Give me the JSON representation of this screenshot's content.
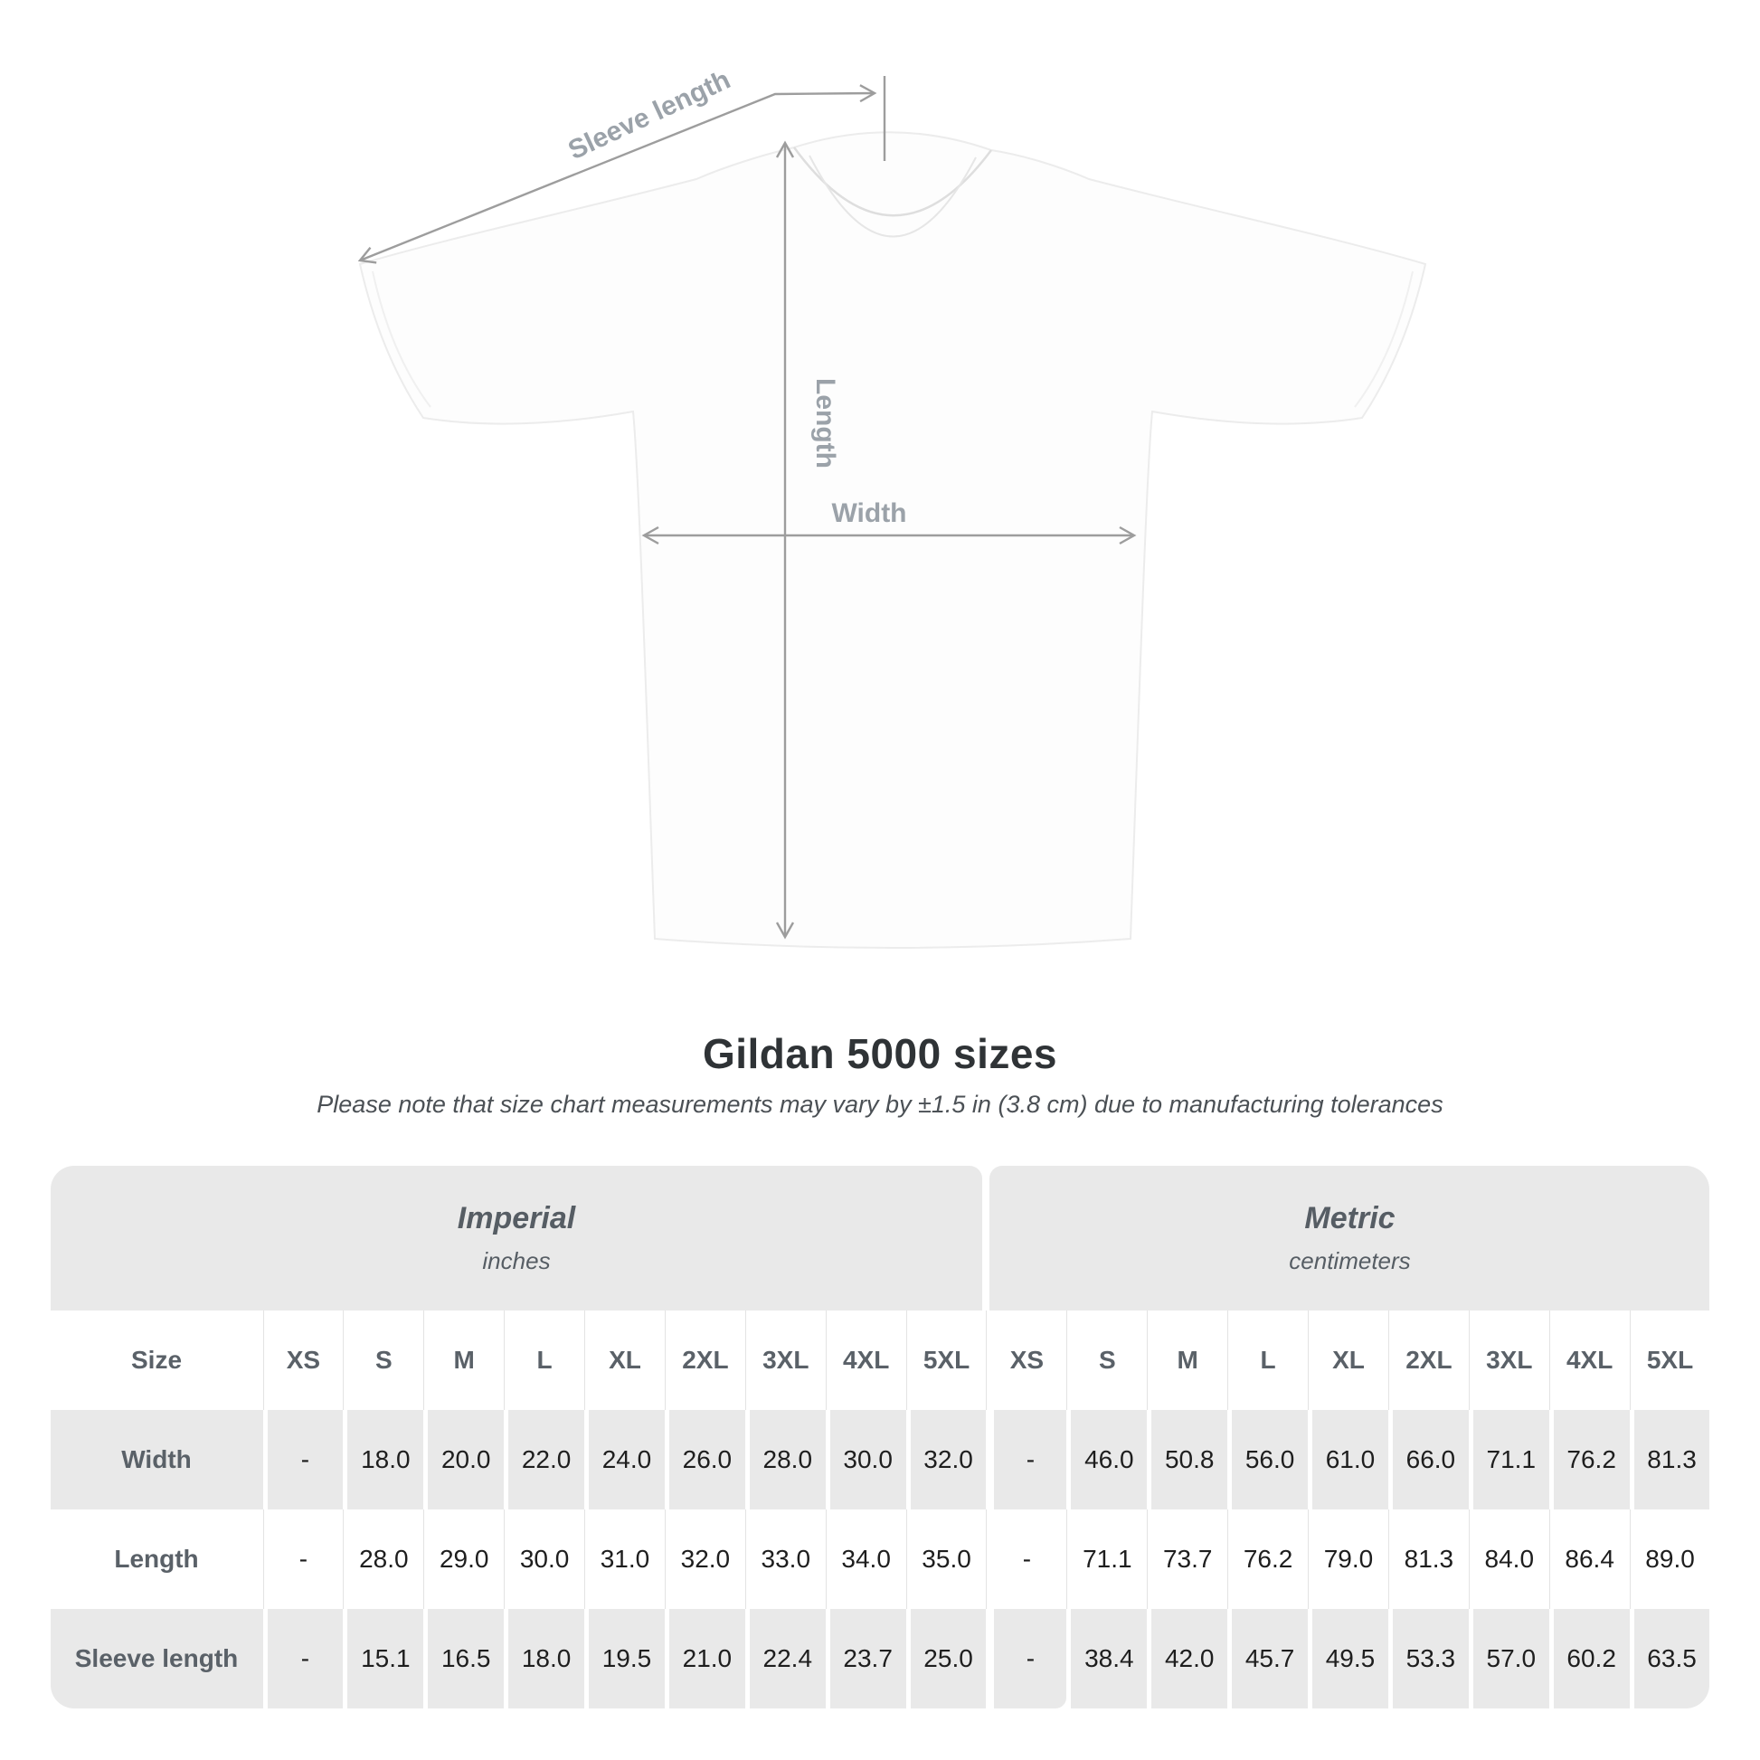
{
  "diagram": {
    "sleeve_length_label": "Sleeve length",
    "length_label": "Length",
    "width_label": "Width"
  },
  "title": "Gildan 5000 sizes",
  "subtitle": "Please note that size chart measurements may vary by ±1.5 in (3.8 cm) due to manufacturing tolerances",
  "size_table": {
    "size_header": "Size",
    "sizes": [
      "XS",
      "S",
      "M",
      "L",
      "XL",
      "2XL",
      "3XL",
      "4XL",
      "5XL"
    ],
    "groups": [
      {
        "name": "Imperial",
        "unit": "inches"
      },
      {
        "name": "Metric",
        "unit": "centimeters"
      }
    ],
    "rows": [
      {
        "label": "Width",
        "imperial": [
          "-",
          "18.0",
          "20.0",
          "22.0",
          "24.0",
          "26.0",
          "28.0",
          "30.0",
          "32.0"
        ],
        "metric": [
          "-",
          "46.0",
          "50.8",
          "56.0",
          "61.0",
          "66.0",
          "71.1",
          "76.2",
          "81.3"
        ]
      },
      {
        "label": "Length",
        "imperial": [
          "-",
          "28.0",
          "29.0",
          "30.0",
          "31.0",
          "32.0",
          "33.0",
          "34.0",
          "35.0"
        ],
        "metric": [
          "-",
          "71.1",
          "73.7",
          "76.2",
          "79.0",
          "81.3",
          "84.0",
          "86.4",
          "89.0"
        ]
      },
      {
        "label": "Sleeve length",
        "imperial": [
          "-",
          "15.1",
          "16.5",
          "18.0",
          "19.5",
          "21.0",
          "22.4",
          "23.7",
          "25.0"
        ],
        "metric": [
          "-",
          "38.4",
          "42.0",
          "45.7",
          "49.5",
          "53.3",
          "57.0",
          "60.2",
          "63.5"
        ]
      }
    ]
  },
  "chart_data": {
    "type": "table",
    "title": "Gildan 5000 sizes",
    "columns": [
      "Size",
      "XS",
      "S",
      "M",
      "L",
      "XL",
      "2XL",
      "3XL",
      "4XL",
      "5XL",
      "XS",
      "S",
      "M",
      "L",
      "XL",
      "2XL",
      "3XL",
      "4XL",
      "5XL"
    ],
    "rows": [
      [
        "Width",
        "-",
        "18.0",
        "20.0",
        "22.0",
        "24.0",
        "26.0",
        "28.0",
        "30.0",
        "32.0",
        "-",
        "46.0",
        "50.8",
        "56.0",
        "61.0",
        "66.0",
        "71.1",
        "76.2",
        "81.3"
      ],
      [
        "Length",
        "-",
        "28.0",
        "29.0",
        "30.0",
        "31.0",
        "32.0",
        "33.0",
        "34.0",
        "35.0",
        "-",
        "71.1",
        "73.7",
        "76.2",
        "79.0",
        "81.3",
        "84.0",
        "86.4",
        "89.0"
      ],
      [
        "Sleeve length",
        "-",
        "15.1",
        "16.5",
        "18.0",
        "19.5",
        "21.0",
        "22.4",
        "23.7",
        "25.0",
        "-",
        "38.4",
        "42.0",
        "45.7",
        "49.5",
        "53.3",
        "57.0",
        "60.2",
        "63.5"
      ]
    ]
  },
  "colors": {
    "stripe_gray": "#e9e9e9",
    "annotation_gray": "#9ba2a9",
    "header_text": "#5a6168",
    "value_text": "#1e1e1e"
  }
}
